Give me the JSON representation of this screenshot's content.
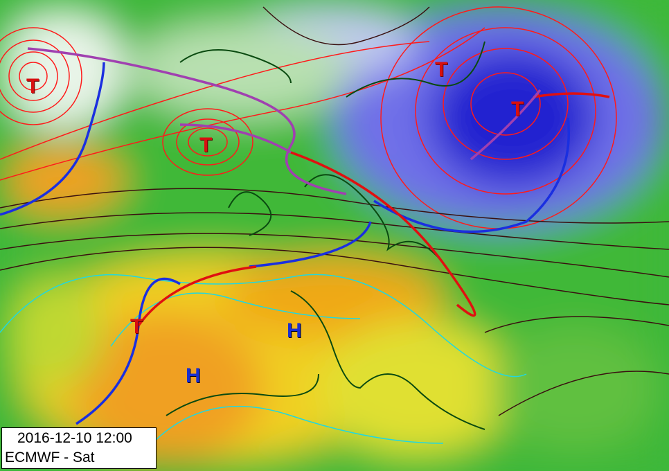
{
  "info_box": {
    "datetime": "2016-12-10 12:00",
    "source": "ECMWF - Sat"
  },
  "pressure_centers": [
    {
      "type": "low",
      "label": "T"
    },
    {
      "type": "low",
      "label": "T"
    },
    {
      "type": "low",
      "label": "T"
    },
    {
      "type": "low",
      "label": "T"
    },
    {
      "type": "low",
      "label": "T"
    },
    {
      "type": "high",
      "label": "H"
    },
    {
      "type": "high",
      "label": "H"
    }
  ],
  "colors": {
    "low_label": "#d81010",
    "high_label": "#1a2fd0",
    "cold_front": "#1a2fe0",
    "warm_front": "#e01010",
    "occluded_front": "#a040b0",
    "isobar_low": "#ff1010",
    "isobar": "#3a1010",
    "isotherm": "#20d8e0",
    "coastline": "#0a4a10"
  }
}
